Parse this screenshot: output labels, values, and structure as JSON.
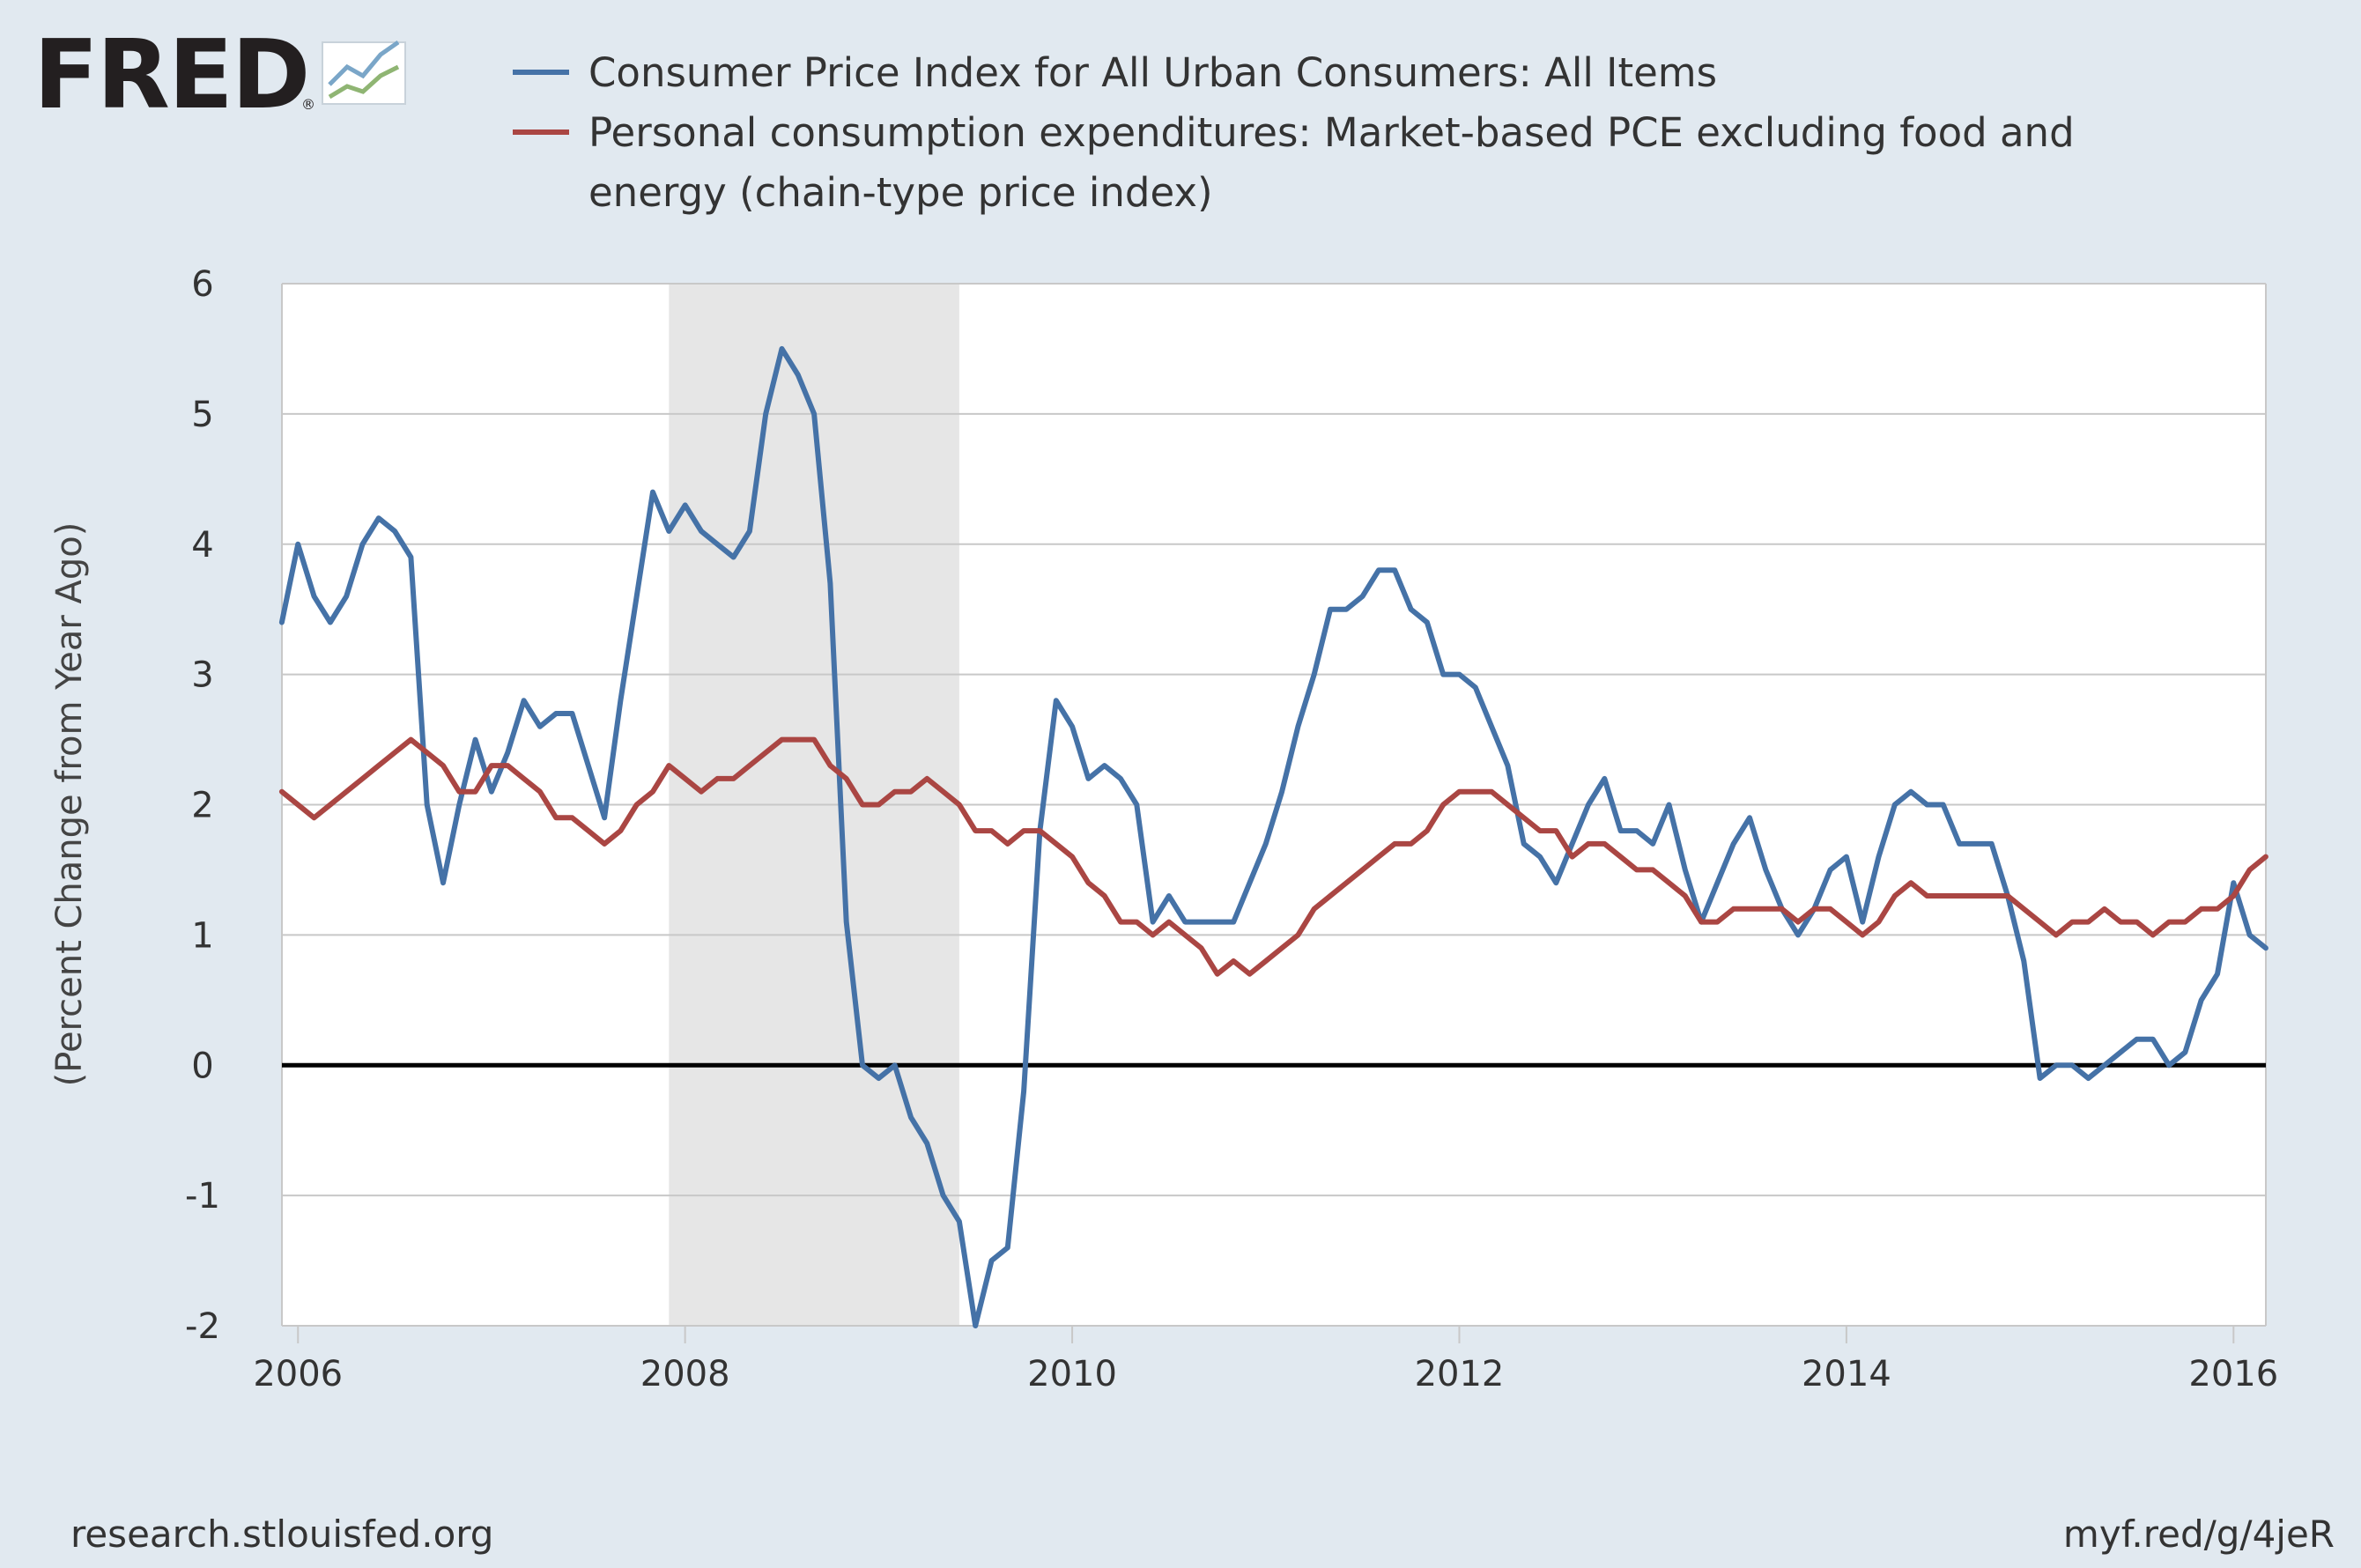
{
  "logo": {
    "text": "FRED",
    "reg_mark": "®"
  },
  "footer": {
    "left": "research.stlouisfed.org",
    "right": "myf.red/g/4jeR"
  },
  "chart_data": {
    "type": "line",
    "title": "",
    "xlabel": "",
    "ylabel": "(Percent Change from Year Ago)",
    "xlim": [
      2005.917,
      2016.167
    ],
    "ylim": [
      -2,
      6
    ],
    "x_ticks": [
      2006,
      2008,
      2010,
      2012,
      2014,
      2016
    ],
    "x_tick_labels": [
      "2006",
      "2008",
      "2010",
      "2012",
      "2014",
      "2016"
    ],
    "y_ticks": [
      -2,
      -1,
      0,
      1,
      2,
      3,
      4,
      5,
      6
    ],
    "y_tick_labels": [
      "-2",
      "-1",
      "0",
      "1",
      "2",
      "3",
      "4",
      "5",
      "6"
    ],
    "grid": true,
    "legend_position": "top",
    "zero_line": true,
    "recessions": [
      {
        "start": "2007-12",
        "end": "2009-06"
      }
    ],
    "series": [
      {
        "name": "Consumer Price Index for All Urban Consumers: All Items",
        "color": "#4572a7",
        "start": "2005-12",
        "values": [
          3.4,
          4.0,
          3.6,
          3.4,
          3.6,
          4.0,
          4.2,
          4.1,
          3.9,
          2.0,
          1.4,
          2.0,
          2.5,
          2.1,
          2.4,
          2.8,
          2.6,
          2.7,
          2.7,
          2.3,
          1.9,
          2.8,
          3.6,
          4.4,
          4.1,
          4.3,
          4.1,
          4.0,
          3.9,
          4.1,
          5.0,
          5.5,
          5.3,
          5.0,
          3.7,
          1.1,
          0.0,
          -0.1,
          0.0,
          -0.4,
          -0.6,
          -1.0,
          -1.2,
          -2.0,
          -1.5,
          -1.4,
          -0.2,
          1.8,
          2.8,
          2.6,
          2.2,
          2.3,
          2.2,
          2.0,
          1.1,
          1.3,
          1.1,
          1.1,
          1.1,
          1.1,
          1.4,
          1.7,
          2.1,
          2.6,
          3.0,
          3.5,
          3.5,
          3.6,
          3.8,
          3.8,
          3.5,
          3.4,
          3.0,
          3.0,
          2.9,
          2.6,
          2.3,
          1.7,
          1.6,
          1.4,
          1.7,
          2.0,
          2.2,
          1.8,
          1.8,
          1.7,
          2.0,
          1.5,
          1.1,
          1.4,
          1.7,
          1.9,
          1.5,
          1.2,
          1.0,
          1.2,
          1.5,
          1.6,
          1.1,
          1.6,
          2.0,
          2.1,
          2.0,
          2.0,
          1.7,
          1.7,
          1.7,
          1.3,
          0.8,
          -0.1,
          0.0,
          0.0,
          -0.1,
          0.0,
          0.1,
          0.2,
          0.2,
          0.0,
          0.1,
          0.5,
          0.7,
          1.4,
          1.0,
          0.9
        ]
      },
      {
        "name": "Personal consumption expenditures: Market-based PCE excluding food and energy (chain-type price index)",
        "color": "#aa4643",
        "start": "2005-12",
        "values": [
          2.1,
          2.0,
          1.9,
          2.0,
          2.1,
          2.2,
          2.3,
          2.4,
          2.5,
          2.4,
          2.3,
          2.1,
          2.1,
          2.3,
          2.3,
          2.2,
          2.1,
          1.9,
          1.9,
          1.8,
          1.7,
          1.8,
          2.0,
          2.1,
          2.3,
          2.2,
          2.1,
          2.2,
          2.2,
          2.3,
          2.4,
          2.5,
          2.5,
          2.5,
          2.3,
          2.2,
          2.0,
          2.0,
          2.1,
          2.1,
          2.2,
          2.1,
          2.0,
          1.8,
          1.8,
          1.7,
          1.8,
          1.8,
          1.7,
          1.6,
          1.4,
          1.3,
          1.1,
          1.1,
          1.0,
          1.1,
          1.0,
          0.9,
          0.7,
          0.8,
          0.7,
          0.8,
          0.9,
          1.0,
          1.2,
          1.3,
          1.4,
          1.5,
          1.6,
          1.7,
          1.7,
          1.8,
          2.0,
          2.1,
          2.1,
          2.1,
          2.0,
          1.9,
          1.8,
          1.8,
          1.6,
          1.7,
          1.7,
          1.6,
          1.5,
          1.5,
          1.4,
          1.3,
          1.1,
          1.1,
          1.2,
          1.2,
          1.2,
          1.2,
          1.1,
          1.2,
          1.2,
          1.1,
          1.0,
          1.1,
          1.3,
          1.4,
          1.3,
          1.3,
          1.3,
          1.3,
          1.3,
          1.3,
          1.2,
          1.1,
          1.0,
          1.1,
          1.1,
          1.2,
          1.1,
          1.1,
          1.0,
          1.1,
          1.1,
          1.2,
          1.2,
          1.3,
          1.5,
          1.6
        ]
      }
    ]
  }
}
